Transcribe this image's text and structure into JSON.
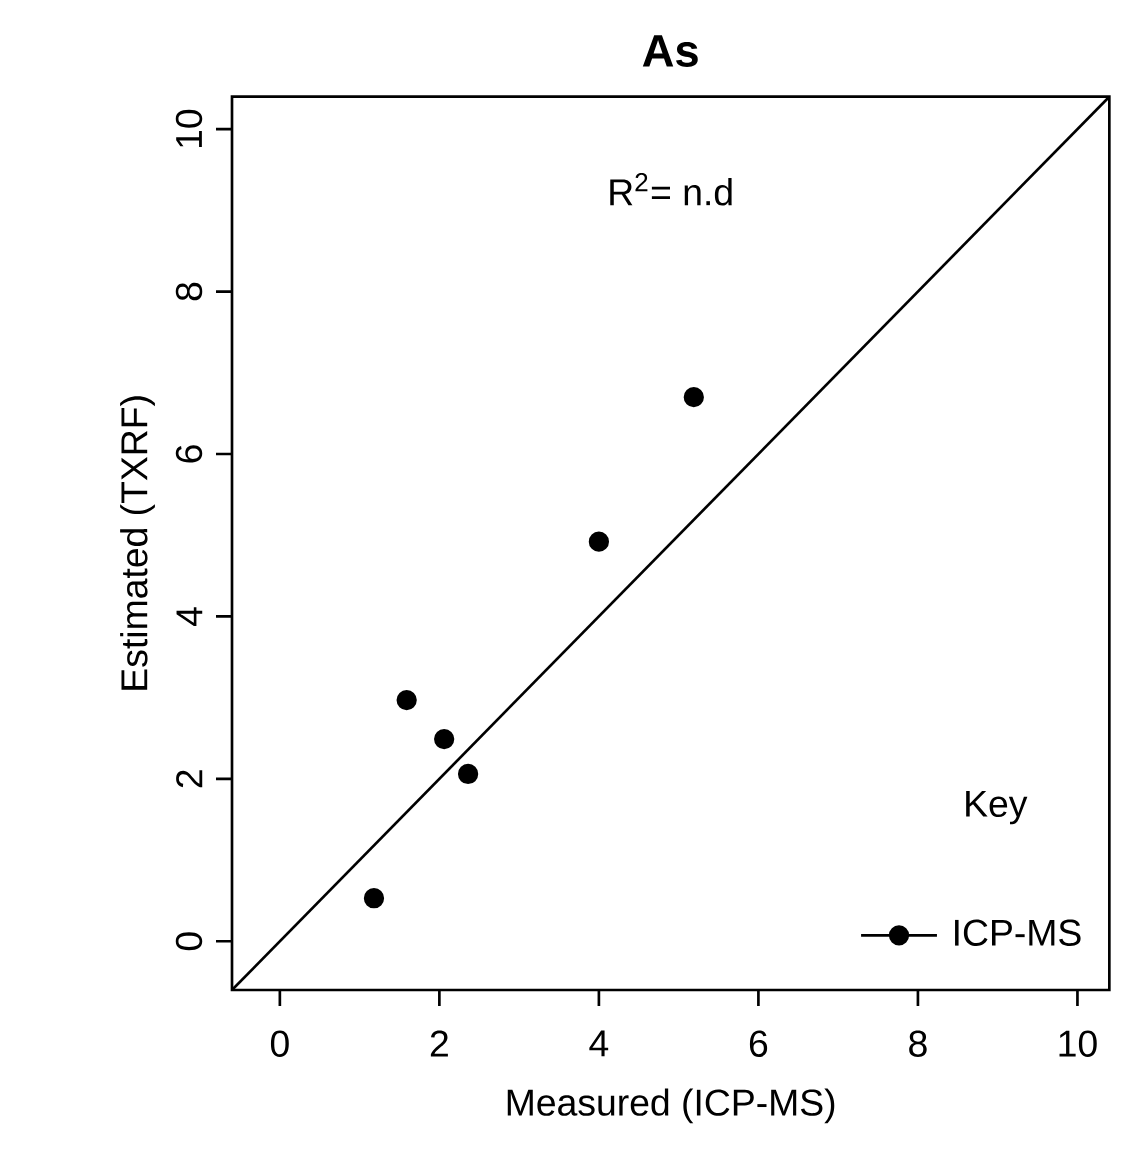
{
  "chart_data": {
    "type": "scatter",
    "title": "As",
    "xlabel": "Measured (ICP-MS)",
    "ylabel": "Estimated (TXRF)",
    "legend_title": "Key",
    "annotations": [
      "R$^{2}$= n.d"
    ],
    "xlim": [
      -0.6,
      10.4
    ],
    "ylim": [
      -0.6,
      10.4
    ],
    "xticks": [
      0,
      2,
      4,
      6,
      8,
      10
    ],
    "yticks": [
      0,
      2,
      4,
      6,
      8,
      10
    ],
    "grid": false,
    "legend": "bottom right",
    "marker": "circle",
    "series": [
      {
        "name": "ICP-MS",
        "color": "#000000",
        "x": [
          1.18,
          1.59,
          2.06,
          2.36,
          4.0,
          5.19
        ],
        "values": [
          0.53,
          2.97,
          2.49,
          2.06,
          4.92,
          6.7
        ]
      },
      {
        "type": "line",
        "marker": "none",
        "color": "#000000",
        "x": [
          -0.6,
          10.4
        ],
        "values": [
          -0.6,
          10.4
        ]
      }
    ]
  }
}
